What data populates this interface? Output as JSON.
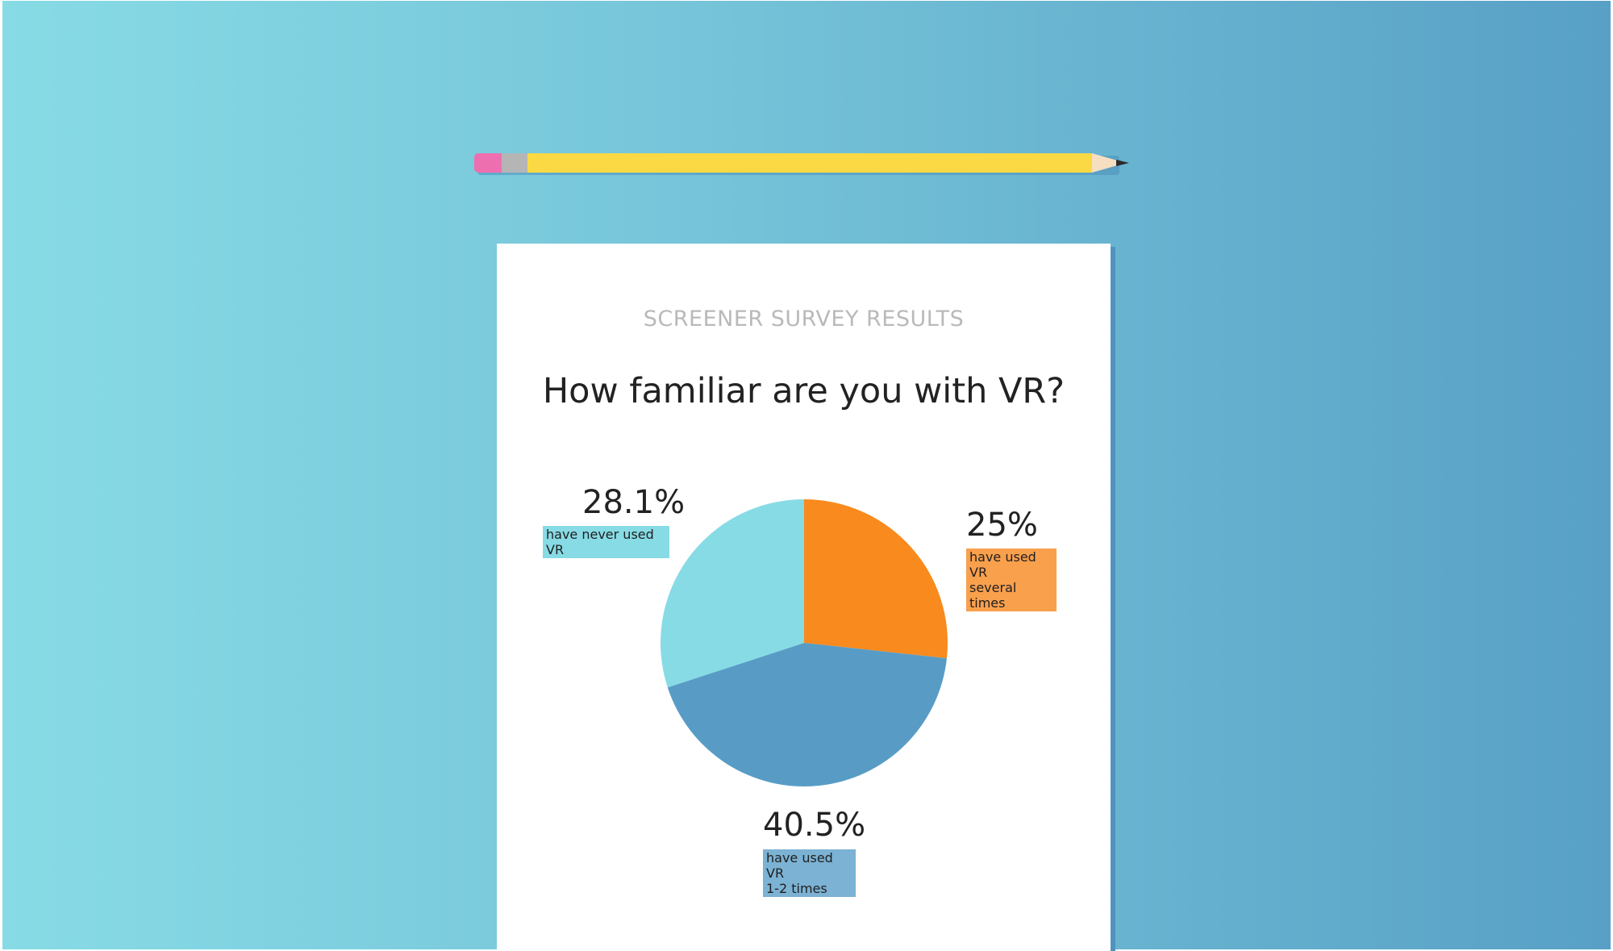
{
  "eyebrow": "SCREENER SURVEY RESULTS",
  "question": "How familiar are you with VR?",
  "colors": {
    "never": "#87dbe5",
    "several": "#f98a1d",
    "one_two": "#589cc6",
    "tag_never": "#87dbe5",
    "tag_several": "#f9a04d",
    "tag_one_two": "#7cb2d3"
  },
  "icons": [
    "pencil-icon"
  ],
  "chart_data": {
    "type": "pie",
    "slices": [
      {
        "label": "have used VR several times",
        "value": 25,
        "display": "25%",
        "tag_lines": "have used VR\nseveral times"
      },
      {
        "label": "have used VR 1-2 times",
        "value": 40.5,
        "display": "40.5%",
        "tag_lines": "have used VR\n1-2 times"
      },
      {
        "label": "have never used VR",
        "value": 28.1,
        "display": "28.1%",
        "tag_lines": "have never used VR"
      }
    ]
  }
}
